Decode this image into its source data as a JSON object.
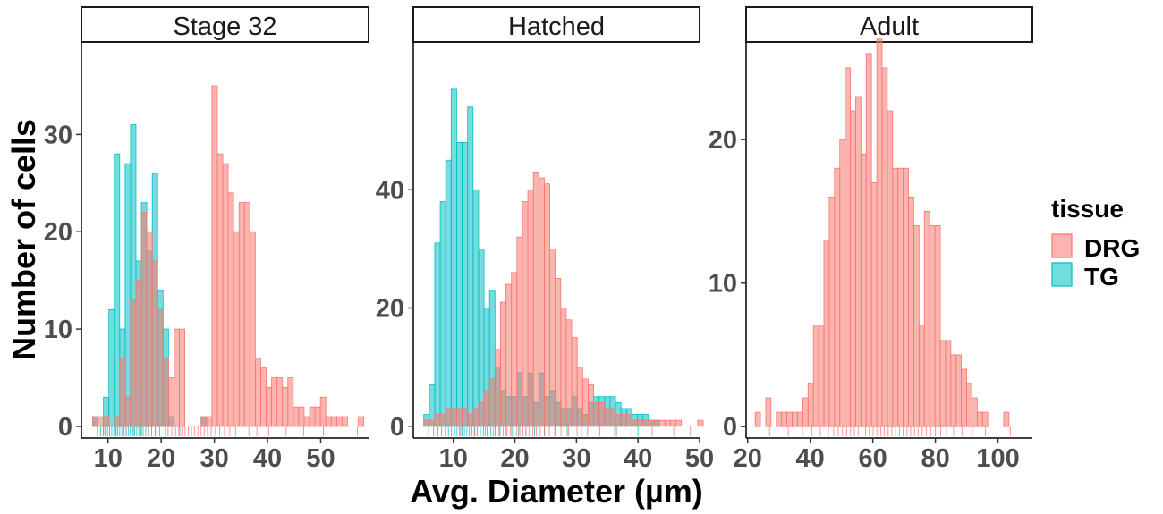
{
  "chart_data": {
    "type": "histogram",
    "xlabel": "Avg. Diameter (µm)",
    "ylabel": "Number of cells",
    "legend": {
      "title": "tissue",
      "placement": "right",
      "entries": [
        {
          "name": "DRG",
          "fill": "#F8766D",
          "stroke": "#F8766D"
        },
        {
          "name": "TG",
          "fill": "#00BFC4",
          "stroke": "#00BFC4"
        }
      ]
    },
    "colors": {
      "DRG": "#F8766D",
      "TG": "#00BFC4"
    },
    "bar_alpha": 0.55,
    "rug": true,
    "panels": [
      {
        "title": "Stage 32",
        "xlim": [
          5,
          59
        ],
        "ylim": [
          -1.2,
          39.5
        ],
        "xticks": [
          10,
          20,
          30,
          40,
          50
        ],
        "yticks": [
          0,
          10,
          20,
          30
        ],
        "series": [
          {
            "name": "TG",
            "bin_start": 7.1,
            "bin_width": 1.02,
            "counts": [
              1,
              0,
              3,
              12,
              28,
              10,
              27,
              31,
              17,
              23,
              18,
              26,
              14,
              10,
              1,
              0,
              0,
              0,
              0,
              0,
              1,
              0,
              0,
              0,
              0,
              0,
              0,
              0,
              0,
              0,
              0,
              0,
              0,
              0,
              0,
              0,
              0,
              0,
              0,
              0,
              0,
              0,
              0,
              0,
              0,
              0,
              0,
              0,
              0
            ],
            "rug": [
              8,
              8.6,
              9.1,
              9.5,
              9.9,
              10.3,
              10.7,
              11.1,
              11.5,
              11.8,
              12.2,
              12.6,
              13,
              13.4,
              13.8,
              14.2,
              14.6,
              15,
              15.4,
              15.8,
              16.2,
              16.6,
              17.1,
              17.6,
              18.2,
              18.9,
              19.7,
              20.8,
              23.5
            ]
          },
          {
            "name": "DRG",
            "bin_start": 7.1,
            "bin_width": 1.02,
            "counts": [
              1,
              1,
              1,
              0,
              1,
              7,
              3,
              13,
              15,
              22,
              20,
              17,
              12,
              7,
              5,
              10,
              10,
              0,
              0,
              0,
              1,
              1,
              35,
              28,
              27,
              24,
              20,
              23,
              23,
              20,
              7,
              6,
              4,
              5,
              5,
              4,
              5,
              2,
              2,
              1,
              2,
              2,
              3,
              1,
              1,
              1,
              1,
              0,
              0,
              1,
              0
            ],
            "rug": [
              9.2,
              11.5,
              13.4,
              14.8,
              16.3,
              17.6,
              18.9,
              21.3,
              22,
              22.7,
              23.3,
              23.9,
              24.5,
              25.1,
              25.7,
              26.3,
              26.9,
              27.5,
              28.1,
              28.7,
              29.4,
              30.2,
              31,
              31.9,
              32.9,
              34,
              35.2,
              36.5,
              38,
              40.2,
              43.5,
              46.8,
              50.5,
              56.9
            ]
          }
        ]
      },
      {
        "title": "Hatched",
        "xlim": [
          3.5,
          50
        ],
        "ylim": [
          -2,
          65
        ],
        "xticks": [
          10,
          20,
          30,
          40,
          50
        ],
        "yticks": [
          0,
          20,
          40
        ],
        "series": [
          {
            "name": "TG",
            "bin_start": 5.2,
            "bin_width": 0.89,
            "counts": [
              2,
              7,
              31,
              38,
              45,
              57,
              48,
              48,
              54,
              40,
              30,
              20,
              23,
              10,
              6,
              5,
              5,
              9,
              5,
              9,
              4,
              9,
              5,
              6,
              4,
              3,
              3,
              5,
              3,
              2,
              4,
              5,
              5,
              5,
              5,
              4,
              3,
              3,
              2,
              2,
              2,
              1,
              1,
              0,
              0,
              0,
              0,
              0,
              0,
              0,
              0
            ],
            "rug": [
              6,
              6.8,
              7.5,
              8.1,
              8.7,
              9.2,
              9.7,
              10.2,
              10.6,
              11,
              11.4,
              11.8,
              12.2,
              12.6,
              13,
              13.4,
              13.9,
              14.4,
              14.9,
              15.5,
              16.1,
              16.8,
              17.6,
              18.5,
              19.5,
              20.6,
              21.8,
              23.2,
              24.8,
              26.5,
              28.5,
              30.8,
              33.5,
              36.5,
              40
            ]
          },
          {
            "name": "DRG",
            "bin_start": 5.2,
            "bin_width": 0.89,
            "counts": [
              1,
              1,
              2,
              2,
              3,
              3,
              3,
              3,
              2,
              3,
              4,
              6,
              8,
              13,
              21,
              24,
              26,
              32,
              38,
              40,
              43,
              42,
              41,
              30,
              25,
              20,
              18,
              15,
              10,
              8,
              7,
              4,
              4,
              3,
              3,
              2,
              2,
              2,
              1,
              1,
              1,
              1,
              1,
              1,
              1,
              1,
              1,
              0,
              0,
              0,
              1
            ],
            "rug": [
              8.8,
              11.2,
              13.5,
              15.2,
              16.5,
              17.4,
              18.1,
              18.7,
              19.3,
              19.8,
              20.3,
              20.8,
              21.3,
              21.8,
              22.3,
              22.9,
              23.5,
              24.1,
              24.8,
              25.6,
              26.5,
              27.5,
              28.7,
              30.1,
              31.8,
              33.8,
              36.2,
              39,
              42.3,
              45.8,
              48.5
            ]
          }
        ]
      },
      {
        "title": "Adult",
        "xlim": [
          19.5,
          111
        ],
        "ylim": [
          -0.8,
          26.8
        ],
        "xticks": [
          20,
          40,
          60,
          80,
          100
        ],
        "yticks": [
          0,
          10,
          20
        ],
        "series": [
          {
            "name": "DRG",
            "bin_start": 22.4,
            "bin_width": 1.69,
            "counts": [
              1,
              0,
              2,
              0,
              1,
              1,
              1,
              1,
              1,
              2,
              3,
              7,
              7,
              13,
              16,
              18,
              20,
              25,
              22,
              23,
              19,
              26,
              17,
              27,
              25,
              22,
              18,
              18,
              18,
              16,
              14,
              7,
              15,
              14,
              14,
              6,
              6,
              5,
              5,
              4,
              3,
              2,
              1,
              1,
              0,
              0,
              0,
              1
            ],
            "rug": [
              27,
              33,
              37.5,
              40.5,
              43.2,
              45.8,
              47.5,
              48.9,
              50.3,
              51.6,
              52.9,
              54.1,
              55.3,
              56.5,
              57.7,
              58.9,
              60.1,
              61.3,
              62.5,
              63.7,
              64.9,
              66.1,
              67.3,
              68.5,
              69.7,
              70.9,
              72.1,
              73.3,
              74.5,
              75.8,
              77.1,
              78.5,
              80,
              81.7,
              83.6,
              85.8,
              88.5,
              91.8,
              96,
              104
            ]
          }
        ]
      }
    ]
  }
}
